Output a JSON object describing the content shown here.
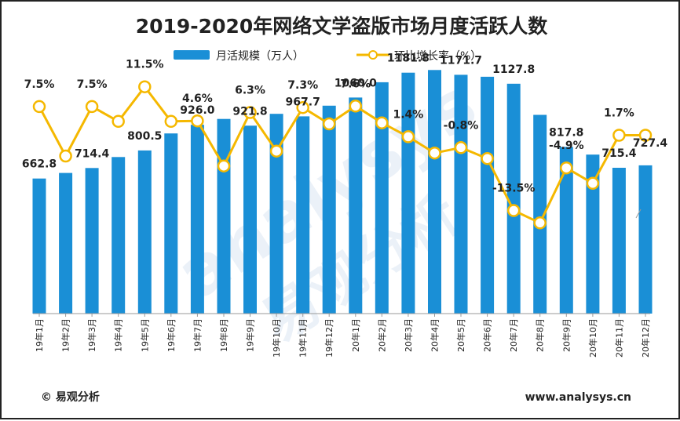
{
  "title": "2019-2020年网络文学盗版市场月度活跃人数",
  "legend": {
    "bar_label": "月活规模（万人）",
    "line_label": "环比增长率（%）"
  },
  "footer": {
    "source": "© 易观分析",
    "website": "www.analysys.cn"
  },
  "watermark": {
    "latin": "analysys",
    "cn": "易观分析"
  },
  "colors": {
    "bar": "#1a8fd6",
    "line": "#f5b800",
    "marker_fill": "#ffffff"
  },
  "chart_data": {
    "type": "bar",
    "title": "2019-2020年网络文学盗版市场月度活跃人数",
    "categories": [
      "19年1月",
      "19年2月",
      "19年3月",
      "19年4月",
      "19年5月",
      "19年6月",
      "19年7月",
      "19年8月",
      "19年9月",
      "19年10月",
      "19年11月",
      "19年12月",
      "20年1月",
      "20年2月",
      "20年3月",
      "20年4月",
      "20年5月",
      "20年6月",
      "20年7月",
      "20年8月",
      "20年9月",
      "20年10月",
      "20年11月",
      "20年12月"
    ],
    "series": [
      {
        "name": "月活规模（万人）",
        "type": "bar",
        "values": [
          662.8,
          690.0,
          714.4,
          768.0,
          800.5,
          884.0,
          926.0,
          955.0,
          921.8,
          980.0,
          967.7,
          1020.0,
          1060.0,
          1135.0,
          1181.8,
          1195.0,
          1171.7,
          1162.0,
          1127.8,
          975.0,
          817.8,
          780.0,
          715.4,
          727.4
        ]
      },
      {
        "name": "环比增长率（%）",
        "type": "line",
        "values": [
          7.5,
          -2.5,
          7.5,
          4.5,
          11.5,
          4.5,
          4.6,
          -4.5,
          6.3,
          -1.5,
          7.3,
          4.0,
          7.6,
          4.2,
          1.4,
          -1.9,
          -0.8,
          -3.0,
          -13.5,
          -16.0,
          -4.9,
          -8.0,
          1.7,
          1.7
        ]
      }
    ],
    "bar_labels": [
      {
        "index": 0,
        "text": "662.8"
      },
      {
        "index": 2,
        "text": "714.4"
      },
      {
        "index": 4,
        "text": "800.5"
      },
      {
        "index": 6,
        "text": "926.0"
      },
      {
        "index": 8,
        "text": "921.8"
      },
      {
        "index": 10,
        "text": "967.7"
      },
      {
        "index": 12,
        "text": "1060.0"
      },
      {
        "index": 14,
        "text": "1181.8"
      },
      {
        "index": 16,
        "text": "1171.7"
      },
      {
        "index": 18,
        "text": "1127.8"
      },
      {
        "index": 20,
        "text": "817.8"
      },
      {
        "index": 22,
        "text": "715.4"
      },
      {
        "index": 23,
        "text": "727.4"
      }
    ],
    "line_labels": [
      {
        "index": 0,
        "text": "7.5%"
      },
      {
        "index": 2,
        "text": "7.5%"
      },
      {
        "index": 4,
        "text": "11.5%"
      },
      {
        "index": 6,
        "text": "4.6%"
      },
      {
        "index": 8,
        "text": "6.3%"
      },
      {
        "index": 10,
        "text": "7.3%"
      },
      {
        "index": 12,
        "text": "7.6%"
      },
      {
        "index": 14,
        "text": "1.4%"
      },
      {
        "index": 16,
        "text": "-0.8%"
      },
      {
        "index": 18,
        "text": "-13.5%"
      },
      {
        "index": 20,
        "text": "-4.9%"
      },
      {
        "index": 22,
        "text": "1.7%"
      }
    ],
    "bar_ylim": [
      0,
      1300
    ],
    "line_ylim": [
      -60,
      20
    ],
    "legend_position": "top-center",
    "grid": false
  }
}
